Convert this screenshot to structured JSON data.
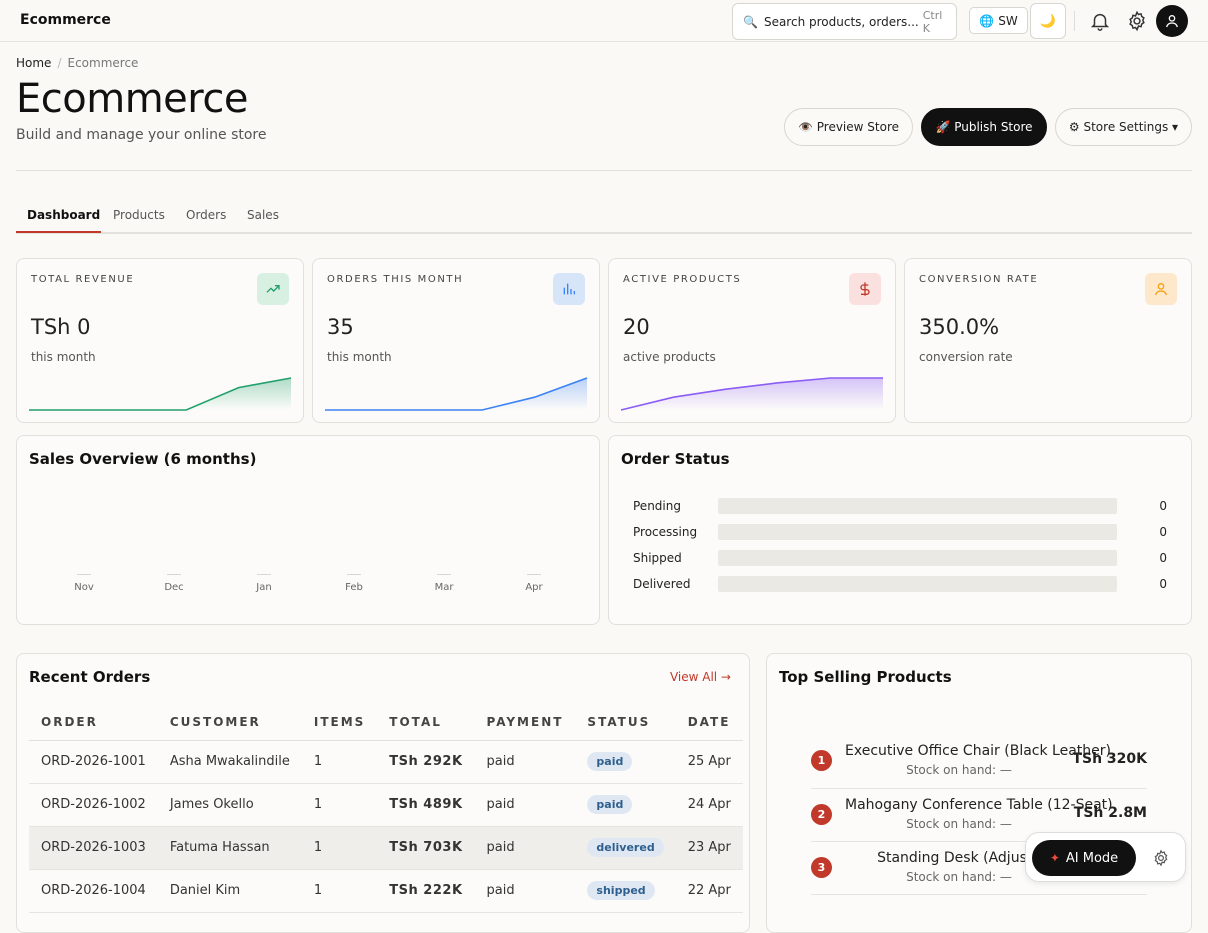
{
  "app": {
    "brand": "Ecommerce"
  },
  "topbar": {
    "search_placeholder": "Search products, orders...",
    "search_shortcut": "Ctrl K",
    "language": "SW"
  },
  "breadcrumb": {
    "home": "Home",
    "current": "Ecommerce"
  },
  "page": {
    "title": "Ecommerce",
    "subtitle": "Build and manage your online store"
  },
  "actions": {
    "preview": "👁️ Preview Store",
    "publish": "🚀 Publish Store",
    "settings": "⚙ Store Settings ▾"
  },
  "tabs": [
    "Dashboard",
    "Products",
    "Orders",
    "Sales"
  ],
  "kpis": [
    {
      "label": "TOTAL REVENUE",
      "value": "TSh 0",
      "sub": "this month",
      "icon": "trend-up-icon",
      "color": "#22a06b",
      "trend": [
        0,
        0,
        0,
        0,
        0.7,
        1
      ]
    },
    {
      "label": "ORDERS THIS MONTH",
      "value": "35",
      "sub": "this month",
      "icon": "bar-chart-icon",
      "color": "#3b82f6",
      "trend": [
        0,
        0,
        0,
        0,
        0.4,
        1
      ]
    },
    {
      "label": "ACTIVE PRODUCTS",
      "value": "20",
      "sub": "active products",
      "icon": "dollar-icon",
      "color": "#8b5cf6",
      "trend": [
        0,
        0.4,
        0.65,
        0.85,
        1,
        1
      ]
    },
    {
      "label": "CONVERSION RATE",
      "value": "350.0%",
      "sub": "conversion rate",
      "icon": "user-icon",
      "color": "#f59e0b",
      "trend": []
    }
  ],
  "sales_overview": {
    "title": "Sales Overview (6 months)",
    "chart_data": {
      "type": "bar",
      "categories": [
        "Nov",
        "Dec",
        "Jan",
        "Feb",
        "Mar",
        "Apr"
      ],
      "values": [
        0,
        0,
        0,
        0,
        0,
        0
      ]
    }
  },
  "order_status": {
    "title": "Order Status",
    "rows": [
      {
        "label": "Pending",
        "value": "0",
        "fill": 0
      },
      {
        "label": "Processing",
        "value": "0",
        "fill": 0
      },
      {
        "label": "Shipped",
        "value": "0",
        "fill": 0
      },
      {
        "label": "Delivered",
        "value": "0",
        "fill": 0
      }
    ]
  },
  "recent_orders": {
    "title": "Recent Orders",
    "view_all": "View All →",
    "columns": [
      "ORDER",
      "CUSTOMER",
      "ITEMS",
      "TOTAL",
      "PAYMENT",
      "STATUS",
      "DATE"
    ],
    "rows": [
      {
        "order": "ORD-2026-1001",
        "customer": "Asha Mwakalindile",
        "items": "1",
        "total": "TSh 292K",
        "payment": "paid",
        "status": "paid",
        "date": "25 Apr"
      },
      {
        "order": "ORD-2026-1002",
        "customer": "James Okello",
        "items": "1",
        "total": "TSh 489K",
        "payment": "paid",
        "status": "paid",
        "date": "24 Apr"
      },
      {
        "order": "ORD-2026-1003",
        "customer": "Fatuma Hassan",
        "items": "1",
        "total": "TSh 703K",
        "payment": "paid",
        "status": "delivered",
        "date": "23 Apr"
      },
      {
        "order": "ORD-2026-1004",
        "customer": "Daniel Kim",
        "items": "1",
        "total": "TSh 222K",
        "payment": "paid",
        "status": "shipped",
        "date": "22 Apr"
      }
    ]
  },
  "top_selling": {
    "title": "Top Selling Products",
    "items": [
      {
        "rank": "1",
        "name": "Executive Office Chair (Black Leather)",
        "stock": "Stock on hand: —",
        "price": "TSh 320K"
      },
      {
        "rank": "2",
        "name": "Mahogany Conference Table (12-Seat)",
        "stock": "Stock on hand: —",
        "price": "TSh 2.8M"
      },
      {
        "rank": "3",
        "name": "Standing Desk (Adjusta",
        "stock": "Stock on hand: —",
        "price": ""
      }
    ]
  },
  "ai": {
    "label": "AI Mode"
  }
}
